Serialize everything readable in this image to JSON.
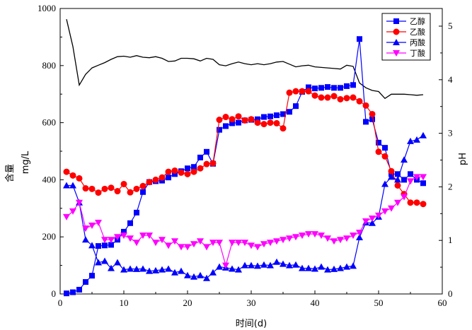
{
  "chart_data": {
    "type": "line",
    "title": "",
    "xlabel": "时间(d)",
    "ylabel_left_top": "含量",
    "ylabel_left_bottom": "mg/L",
    "ylabel_right": "pH",
    "xlim": [
      0,
      60
    ],
    "ylim_left": [
      0,
      1000
    ],
    "ylim_right": [
      0,
      5.33
    ],
    "x_ticks": [
      0,
      10,
      20,
      30,
      40,
      50,
      60
    ],
    "y_left_ticks": [
      0,
      200,
      400,
      600,
      800,
      1000
    ],
    "y_right_ticks": [
      0,
      1,
      2,
      3,
      4,
      5
    ],
    "grid": false,
    "legend_position": "top-right",
    "series": [
      {
        "name": "乙醇",
        "axis": "left",
        "color": "#0000ff",
        "marker": "square",
        "x": [
          1,
          2,
          3,
          4,
          5,
          6,
          7,
          8,
          9,
          10,
          11,
          12,
          13,
          14,
          15,
          16,
          17,
          18,
          19,
          20,
          21,
          22,
          23,
          24,
          25,
          26,
          27,
          28,
          29,
          30,
          31,
          32,
          33,
          34,
          35,
          36,
          37,
          38,
          39,
          40,
          41,
          42,
          43,
          44,
          45,
          46,
          47,
          48,
          49,
          50,
          51,
          52,
          53,
          54,
          55,
          56,
          57
        ],
        "values": [
          2,
          6,
          15,
          42,
          64,
          168,
          170,
          172,
          190,
          218,
          248,
          285,
          357,
          392,
          395,
          397,
          408,
          420,
          430,
          440,
          445,
          478,
          498,
          456,
          575,
          588,
          598,
          600,
          608,
          610,
          612,
          620,
          622,
          626,
          630,
          638,
          658,
          708,
          724,
          720,
          722,
          725,
          722,
          722,
          728,
          732,
          893,
          603,
          612,
          530,
          512,
          420,
          420,
          400,
          420,
          400,
          388
        ]
      },
      {
        "name": "乙酸",
        "axis": "left",
        "color": "#ff0000",
        "marker": "circle",
        "x": [
          1,
          2,
          3,
          4,
          5,
          6,
          7,
          8,
          9,
          10,
          11,
          12,
          13,
          14,
          15,
          16,
          17,
          18,
          19,
          20,
          21,
          22,
          23,
          24,
          25,
          26,
          27,
          28,
          29,
          30,
          31,
          32,
          33,
          34,
          35,
          36,
          37,
          38,
          39,
          40,
          41,
          42,
          43,
          44,
          45,
          46,
          47,
          48,
          49,
          50,
          51,
          52,
          53,
          54,
          55,
          56,
          57
        ],
        "values": [
          428,
          415,
          405,
          370,
          368,
          355,
          368,
          372,
          360,
          385,
          356,
          368,
          378,
          392,
          400,
          408,
          428,
          432,
          425,
          420,
          428,
          440,
          455,
          458,
          610,
          620,
          612,
          622,
          608,
          612,
          600,
          595,
          600,
          598,
          580,
          705,
          710,
          710,
          710,
          695,
          688,
          688,
          693,
          682,
          686,
          688,
          675,
          660,
          630,
          498,
          482,
          430,
          380,
          350,
          320,
          320,
          315
        ]
      },
      {
        "name": "丙酸",
        "axis": "left",
        "color": "#0000ff",
        "marker": "triangle-up",
        "x": [
          1,
          2,
          3,
          4,
          5,
          6,
          7,
          8,
          9,
          10,
          11,
          12,
          13,
          14,
          15,
          16,
          17,
          18,
          19,
          20,
          21,
          22,
          23,
          24,
          25,
          26,
          27,
          28,
          29,
          30,
          31,
          32,
          33,
          34,
          35,
          36,
          37,
          38,
          39,
          40,
          41,
          42,
          43,
          44,
          45,
          46,
          47,
          48,
          49,
          50,
          51,
          52,
          53,
          54,
          55,
          56,
          57
        ],
        "values": [
          380,
          380,
          320,
          190,
          170,
          110,
          115,
          90,
          110,
          85,
          88,
          87,
          88,
          80,
          82,
          85,
          88,
          75,
          80,
          65,
          60,
          65,
          55,
          75,
          95,
          92,
          88,
          85,
          100,
          100,
          98,
          102,
          100,
          112,
          105,
          100,
          102,
          90,
          90,
          88,
          95,
          85,
          87,
          90,
          95,
          98,
          198,
          250,
          248,
          270,
          385,
          410,
          400,
          470,
          535,
          540,
          555
        ]
      },
      {
        "name": "丁酸",
        "axis": "left",
        "color": "#ff00ff",
        "marker": "triangle-down",
        "x": [
          1,
          2,
          3,
          4,
          5,
          6,
          7,
          8,
          9,
          10,
          11,
          12,
          13,
          14,
          15,
          16,
          17,
          18,
          19,
          20,
          21,
          22,
          23,
          24,
          25,
          26,
          27,
          28,
          29,
          30,
          31,
          32,
          33,
          34,
          35,
          36,
          37,
          38,
          39,
          40,
          41,
          42,
          43,
          44,
          45,
          46,
          47,
          48,
          49,
          50,
          51,
          52,
          53,
          54,
          55,
          56,
          57
        ],
        "values": [
          270,
          290,
          320,
          230,
          240,
          250,
          190,
          190,
          200,
          205,
          195,
          180,
          205,
          205,
          180,
          190,
          170,
          185,
          165,
          165,
          175,
          185,
          165,
          180,
          180,
          100,
          180,
          180,
          180,
          170,
          165,
          175,
          180,
          185,
          190,
          195,
          200,
          205,
          210,
          210,
          205,
          195,
          185,
          190,
          195,
          205,
          215,
          255,
          265,
          275,
          290,
          300,
          320,
          340,
          395,
          410,
          410
        ]
      },
      {
        "name": "pH",
        "axis": "right",
        "color": "#000000",
        "marker": "none",
        "x": [
          1,
          2,
          3,
          4,
          5,
          6,
          7,
          8,
          9,
          10,
          11,
          12,
          13,
          14,
          15,
          16,
          17,
          18,
          19,
          20,
          21,
          22,
          23,
          24,
          25,
          26,
          27,
          28,
          29,
          30,
          31,
          32,
          33,
          34,
          35,
          36,
          37,
          38,
          39,
          40,
          41,
          42,
          43,
          44,
          45,
          46,
          47,
          48,
          49,
          50,
          51,
          52,
          53,
          54,
          55,
          56,
          57
        ],
        "values": [
          5.13,
          4.62,
          3.9,
          4.1,
          4.22,
          4.27,
          4.32,
          4.38,
          4.43,
          4.44,
          4.42,
          4.45,
          4.42,
          4.41,
          4.43,
          4.4,
          4.34,
          4.35,
          4.4,
          4.4,
          4.39,
          4.35,
          4.4,
          4.38,
          4.28,
          4.26,
          4.3,
          4.33,
          4.3,
          4.28,
          4.3,
          4.28,
          4.3,
          4.33,
          4.34,
          4.29,
          4.24,
          4.26,
          4.27,
          4.24,
          4.23,
          4.22,
          4.21,
          4.2,
          4.27,
          4.25,
          3.94,
          3.85,
          3.8,
          3.78,
          3.65,
          3.73,
          3.73,
          3.73,
          3.72,
          3.71,
          3.72
        ]
      }
    ]
  }
}
